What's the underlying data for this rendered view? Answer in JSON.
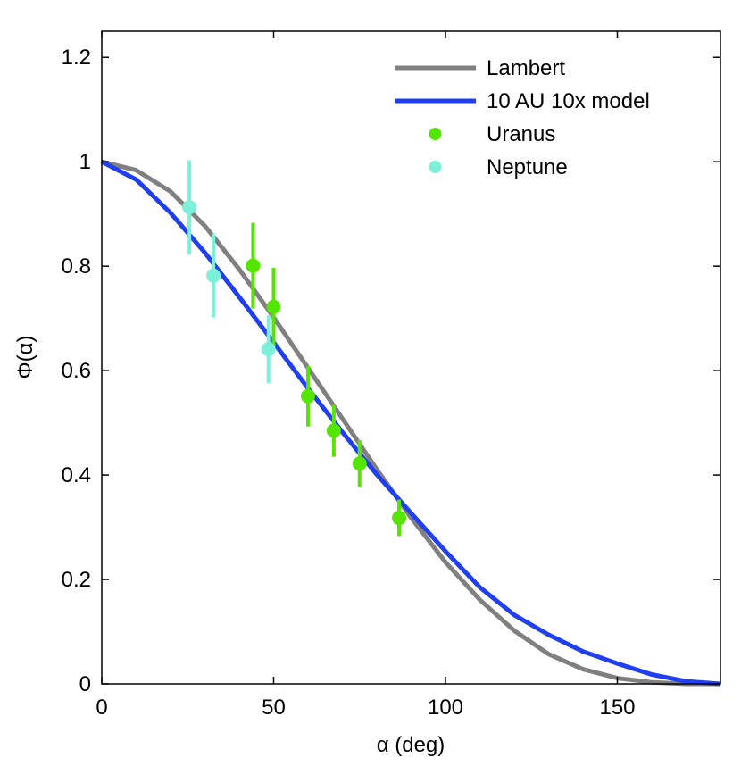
{
  "chart_data": {
    "type": "line",
    "title": "",
    "xlabel": "α (deg)",
    "ylabel": "Φ(α)",
    "xlim": [
      0,
      180
    ],
    "ylim": [
      0,
      1.25
    ],
    "xticks": [
      0,
      50,
      100,
      150
    ],
    "yticks": [
      0,
      0.2,
      0.4,
      0.6,
      0.8,
      1,
      1.2
    ],
    "xtick_labels": [
      "0",
      "50",
      "100",
      "150"
    ],
    "ytick_labels": [
      "0",
      "0.2",
      "0.4",
      "0.6",
      "0.8",
      "1",
      "1.2"
    ],
    "grid": false,
    "legend_position": "top-right",
    "series": [
      {
        "name": "Lambert",
        "kind": "line",
        "color": "#808080",
        "points": [
          [
            0,
            1.0
          ],
          [
            10,
            0.984
          ],
          [
            20,
            0.943
          ],
          [
            30,
            0.877
          ],
          [
            40,
            0.794
          ],
          [
            50,
            0.702
          ],
          [
            60,
            0.605
          ],
          [
            70,
            0.508
          ],
          [
            80,
            0.411
          ],
          [
            90,
            0.318
          ],
          [
            100,
            0.233
          ],
          [
            110,
            0.161
          ],
          [
            120,
            0.102
          ],
          [
            130,
            0.057
          ],
          [
            140,
            0.028
          ],
          [
            150,
            0.011
          ],
          [
            160,
            0.003
          ],
          [
            170,
            0.0
          ],
          [
            180,
            0.0
          ]
        ]
      },
      {
        "name": "10 AU 10x model",
        "kind": "line",
        "color": "#1f3ff0",
        "points": [
          [
            0,
            1.0
          ],
          [
            10,
            0.966
          ],
          [
            20,
            0.902
          ],
          [
            30,
            0.826
          ],
          [
            40,
            0.741
          ],
          [
            50,
            0.654
          ],
          [
            60,
            0.566
          ],
          [
            70,
            0.482
          ],
          [
            80,
            0.401
          ],
          [
            90,
            0.327
          ],
          [
            100,
            0.254
          ],
          [
            110,
            0.185
          ],
          [
            120,
            0.132
          ],
          [
            130,
            0.094
          ],
          [
            140,
            0.062
          ],
          [
            150,
            0.039
          ],
          [
            160,
            0.018
          ],
          [
            170,
            0.005
          ],
          [
            180,
            0.0
          ]
        ]
      },
      {
        "name": "Uranus",
        "kind": "errorbar",
        "color": "#55e600",
        "points": [
          {
            "x": 44,
            "y": 0.801,
            "err": 0.082
          },
          {
            "x": 50,
            "y": 0.722,
            "err": 0.075
          },
          {
            "x": 60,
            "y": 0.551,
            "err": 0.058
          },
          {
            "x": 67.5,
            "y": 0.485,
            "err": 0.05
          },
          {
            "x": 75,
            "y": 0.422,
            "err": 0.045
          },
          {
            "x": 86.5,
            "y": 0.318,
            "err": 0.035
          }
        ]
      },
      {
        "name": "Neptune",
        "kind": "errorbar",
        "color": "#7cf0d8",
        "points": [
          {
            "x": 25.5,
            "y": 0.913,
            "err": 0.09
          },
          {
            "x": 32.5,
            "y": 0.782,
            "err": 0.08
          },
          {
            "x": 48.5,
            "y": 0.641,
            "err": 0.065
          }
        ]
      }
    ]
  }
}
